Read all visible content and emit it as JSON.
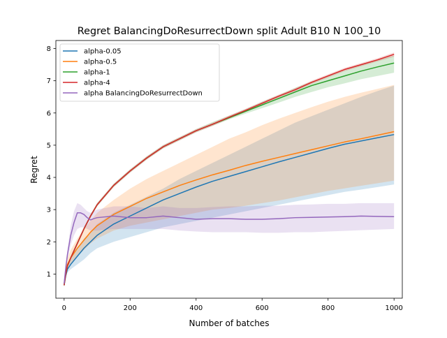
{
  "chart_data": {
    "type": "line",
    "title": "Regret BalancingDoResurrectDown split Adult B10 N 100_10",
    "xlabel": "Number of batches",
    "ylabel": "Regret",
    "xlim": [
      -25,
      1025
    ],
    "ylim": [
      0.25,
      8.25
    ],
    "xticks": [
      0,
      200,
      400,
      600,
      800,
      1000
    ],
    "yticks": [
      1,
      2,
      3,
      4,
      5,
      6,
      7,
      8
    ],
    "legend_position": "upper-left",
    "series": [
      {
        "name": "alpha-0.05",
        "color": "#1f77b4",
        "x": [
          0,
          5,
          10,
          20,
          40,
          60,
          80,
          100,
          150,
          200,
          250,
          300,
          350,
          400,
          450,
          500,
          550,
          600,
          650,
          700,
          750,
          800,
          850,
          900,
          950,
          1000
        ],
        "y": [
          0.65,
          0.95,
          1.15,
          1.3,
          1.55,
          1.8,
          2.0,
          2.2,
          2.55,
          2.8,
          3.05,
          3.3,
          3.5,
          3.7,
          3.88,
          4.03,
          4.18,
          4.33,
          4.48,
          4.62,
          4.76,
          4.9,
          5.03,
          5.13,
          5.23,
          5.33
        ],
        "lower": [
          0.6,
          0.9,
          1.05,
          1.15,
          1.3,
          1.45,
          1.65,
          1.8,
          2.0,
          2.15,
          2.3,
          2.45,
          2.55,
          2.65,
          2.75,
          2.85,
          2.95,
          3.05,
          3.15,
          3.25,
          3.35,
          3.45,
          3.55,
          3.62,
          3.7,
          3.78
        ],
        "upper": [
          0.75,
          1.1,
          1.3,
          1.5,
          1.8,
          2.1,
          2.3,
          2.55,
          2.9,
          3.15,
          3.4,
          3.65,
          3.95,
          4.2,
          4.45,
          4.7,
          4.95,
          5.2,
          5.45,
          5.7,
          5.9,
          6.1,
          6.3,
          6.5,
          6.68,
          6.85
        ]
      },
      {
        "name": "alpha-0.5",
        "color": "#ff7f0e",
        "x": [
          0,
          5,
          10,
          20,
          40,
          60,
          80,
          100,
          150,
          200,
          250,
          300,
          350,
          400,
          450,
          500,
          550,
          600,
          650,
          700,
          750,
          800,
          850,
          900,
          950,
          1000
        ],
        "y": [
          0.7,
          1.05,
          1.3,
          1.5,
          1.8,
          2.05,
          2.3,
          2.5,
          2.85,
          3.1,
          3.35,
          3.55,
          3.75,
          3.92,
          4.08,
          4.22,
          4.37,
          4.5,
          4.62,
          4.74,
          4.86,
          4.98,
          5.1,
          5.2,
          5.31,
          5.42
        ],
        "lower": [
          0.65,
          0.95,
          1.15,
          1.3,
          1.55,
          1.75,
          1.95,
          2.1,
          2.35,
          2.5,
          2.6,
          2.7,
          2.8,
          2.9,
          3.0,
          3.05,
          3.12,
          3.2,
          3.28,
          3.38,
          3.48,
          3.58,
          3.66,
          3.74,
          3.82,
          3.9
        ],
        "upper": [
          0.8,
          1.2,
          1.5,
          1.75,
          2.1,
          2.4,
          2.65,
          2.9,
          3.3,
          3.65,
          3.95,
          4.2,
          4.45,
          4.7,
          4.95,
          5.2,
          5.4,
          5.62,
          5.82,
          6.0,
          6.18,
          6.35,
          6.5,
          6.63,
          6.75,
          6.87
        ]
      },
      {
        "name": "alpha-1",
        "color": "#2ca02c",
        "x": [
          0,
          5,
          10,
          20,
          40,
          60,
          80,
          100,
          150,
          200,
          250,
          300,
          350,
          400,
          450,
          500,
          550,
          600,
          650,
          700,
          750,
          800,
          850,
          900,
          950,
          1000
        ],
        "y": [
          0.65,
          1.0,
          1.25,
          1.5,
          1.95,
          2.4,
          2.8,
          3.15,
          3.75,
          4.2,
          4.6,
          4.95,
          5.2,
          5.45,
          5.65,
          5.85,
          6.05,
          6.25,
          6.45,
          6.65,
          6.85,
          7.0,
          7.15,
          7.3,
          7.43,
          7.55
        ],
        "lower": [
          0.6,
          0.95,
          1.2,
          1.45,
          1.9,
          2.35,
          2.75,
          3.1,
          3.7,
          4.15,
          4.55,
          4.9,
          5.15,
          5.4,
          5.6,
          5.8,
          5.98,
          6.15,
          6.32,
          6.5,
          6.65,
          6.8,
          6.92,
          7.05,
          7.15,
          7.25
        ],
        "upper": [
          0.7,
          1.05,
          1.3,
          1.55,
          2.0,
          2.45,
          2.85,
          3.2,
          3.8,
          4.25,
          4.65,
          5.0,
          5.25,
          5.5,
          5.72,
          5.92,
          6.12,
          6.35,
          6.55,
          6.78,
          6.98,
          7.15,
          7.32,
          7.5,
          7.65,
          7.78
        ]
      },
      {
        "name": "alpha-4",
        "color": "#d62728",
        "x": [
          0,
          5,
          10,
          20,
          40,
          60,
          80,
          100,
          150,
          200,
          250,
          300,
          350,
          400,
          450,
          500,
          550,
          600,
          650,
          700,
          750,
          800,
          850,
          900,
          950,
          1000
        ],
        "y": [
          0.65,
          1.0,
          1.25,
          1.5,
          1.95,
          2.4,
          2.8,
          3.15,
          3.75,
          4.2,
          4.6,
          4.95,
          5.2,
          5.45,
          5.65,
          5.87,
          6.08,
          6.3,
          6.52,
          6.72,
          6.95,
          7.15,
          7.35,
          7.5,
          7.65,
          7.82
        ],
        "lower": [
          0.6,
          0.95,
          1.2,
          1.45,
          1.9,
          2.35,
          2.75,
          3.1,
          3.7,
          4.15,
          4.55,
          4.9,
          5.15,
          5.4,
          5.6,
          5.82,
          6.03,
          6.25,
          6.47,
          6.67,
          6.9,
          7.1,
          7.3,
          7.45,
          7.6,
          7.75
        ],
        "upper": [
          0.7,
          1.05,
          1.3,
          1.55,
          2.0,
          2.45,
          2.85,
          3.2,
          3.8,
          4.25,
          4.65,
          5.0,
          5.25,
          5.5,
          5.7,
          5.92,
          6.13,
          6.35,
          6.57,
          6.77,
          7.0,
          7.2,
          7.4,
          7.55,
          7.7,
          7.88
        ]
      },
      {
        "name": "alpha BalancingDoResurrectDown",
        "color": "#9467bd",
        "x": [
          0,
          5,
          10,
          20,
          30,
          40,
          50,
          60,
          70,
          80,
          90,
          100,
          150,
          200,
          250,
          300,
          350,
          400,
          450,
          500,
          550,
          600,
          650,
          700,
          750,
          800,
          850,
          900,
          950,
          1000
        ],
        "y": [
          0.7,
          1.2,
          1.6,
          2.2,
          2.6,
          2.9,
          2.9,
          2.85,
          2.75,
          2.68,
          2.72,
          2.75,
          2.8,
          2.75,
          2.75,
          2.8,
          2.75,
          2.7,
          2.72,
          2.72,
          2.7,
          2.7,
          2.72,
          2.75,
          2.76,
          2.77,
          2.78,
          2.8,
          2.79,
          2.78
        ],
        "lower": [
          0.65,
          1.1,
          1.45,
          1.9,
          2.2,
          2.4,
          2.45,
          2.45,
          2.4,
          2.35,
          2.35,
          2.35,
          2.4,
          2.4,
          2.4,
          2.4,
          2.35,
          2.32,
          2.3,
          2.3,
          2.3,
          2.28,
          2.28,
          2.3,
          2.3,
          2.32,
          2.34,
          2.36,
          2.38,
          2.4
        ],
        "upper": [
          0.75,
          1.3,
          1.75,
          2.5,
          2.95,
          3.2,
          3.15,
          3.05,
          2.95,
          2.9,
          2.95,
          3.0,
          3.1,
          3.1,
          3.05,
          3.1,
          3.05,
          3.05,
          3.08,
          3.1,
          3.1,
          3.12,
          3.12,
          3.15,
          3.16,
          3.18,
          3.18,
          3.2,
          3.2,
          3.2
        ]
      }
    ]
  }
}
